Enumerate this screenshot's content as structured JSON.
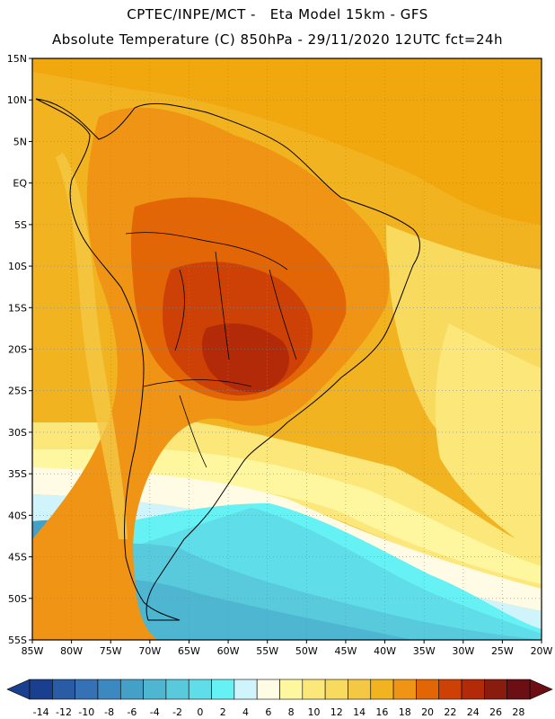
{
  "header": {
    "line1": "CPTEC/INPE/MCT -   Eta Model 15km - GFS",
    "line2": "Absolute Temperature (C) 850hPa - 29/11/2020 12UTC fct=24h"
  },
  "map": {
    "latitude_labels": [
      "15N",
      "10N",
      "5N",
      "EQ",
      "5S",
      "10S",
      "15S",
      "20S",
      "25S",
      "30S",
      "35S",
      "40S",
      "45S",
      "50S",
      "55S"
    ],
    "longitude_labels": [
      "85W",
      "80W",
      "75W",
      "70W",
      "65W",
      "60W",
      "55W",
      "50W",
      "45W",
      "40W",
      "35W",
      "30W",
      "25W",
      "20W"
    ],
    "lat_range": [
      15,
      -55
    ],
    "lon_range": [
      -85,
      -20
    ],
    "grid": true,
    "grid_style": "dotted"
  },
  "colorbar": {
    "ticks": [
      "-14",
      "-12",
      "-10",
      "-8",
      "-6",
      "-4",
      "-2",
      "0",
      "2",
      "4",
      "6",
      "8",
      "10",
      "12",
      "14",
      "16",
      "18",
      "20",
      "22",
      "24",
      "26",
      "28"
    ],
    "colors": [
      "#1b3f8f",
      "#2a5ca6",
      "#3472b5",
      "#3c88c0",
      "#45a0c8",
      "#4fb6d2",
      "#58cadc",
      "#5fdde8",
      "#66f2f5",
      "#cff4fb",
      "#fffbe4",
      "#fff7a0",
      "#fbe77a",
      "#f7da5e",
      "#f4c845",
      "#f2b321",
      "#ef9414",
      "#e26506",
      "#cd4106",
      "#b22a07",
      "#8a1c0f",
      "#6b0f14"
    ]
  }
}
